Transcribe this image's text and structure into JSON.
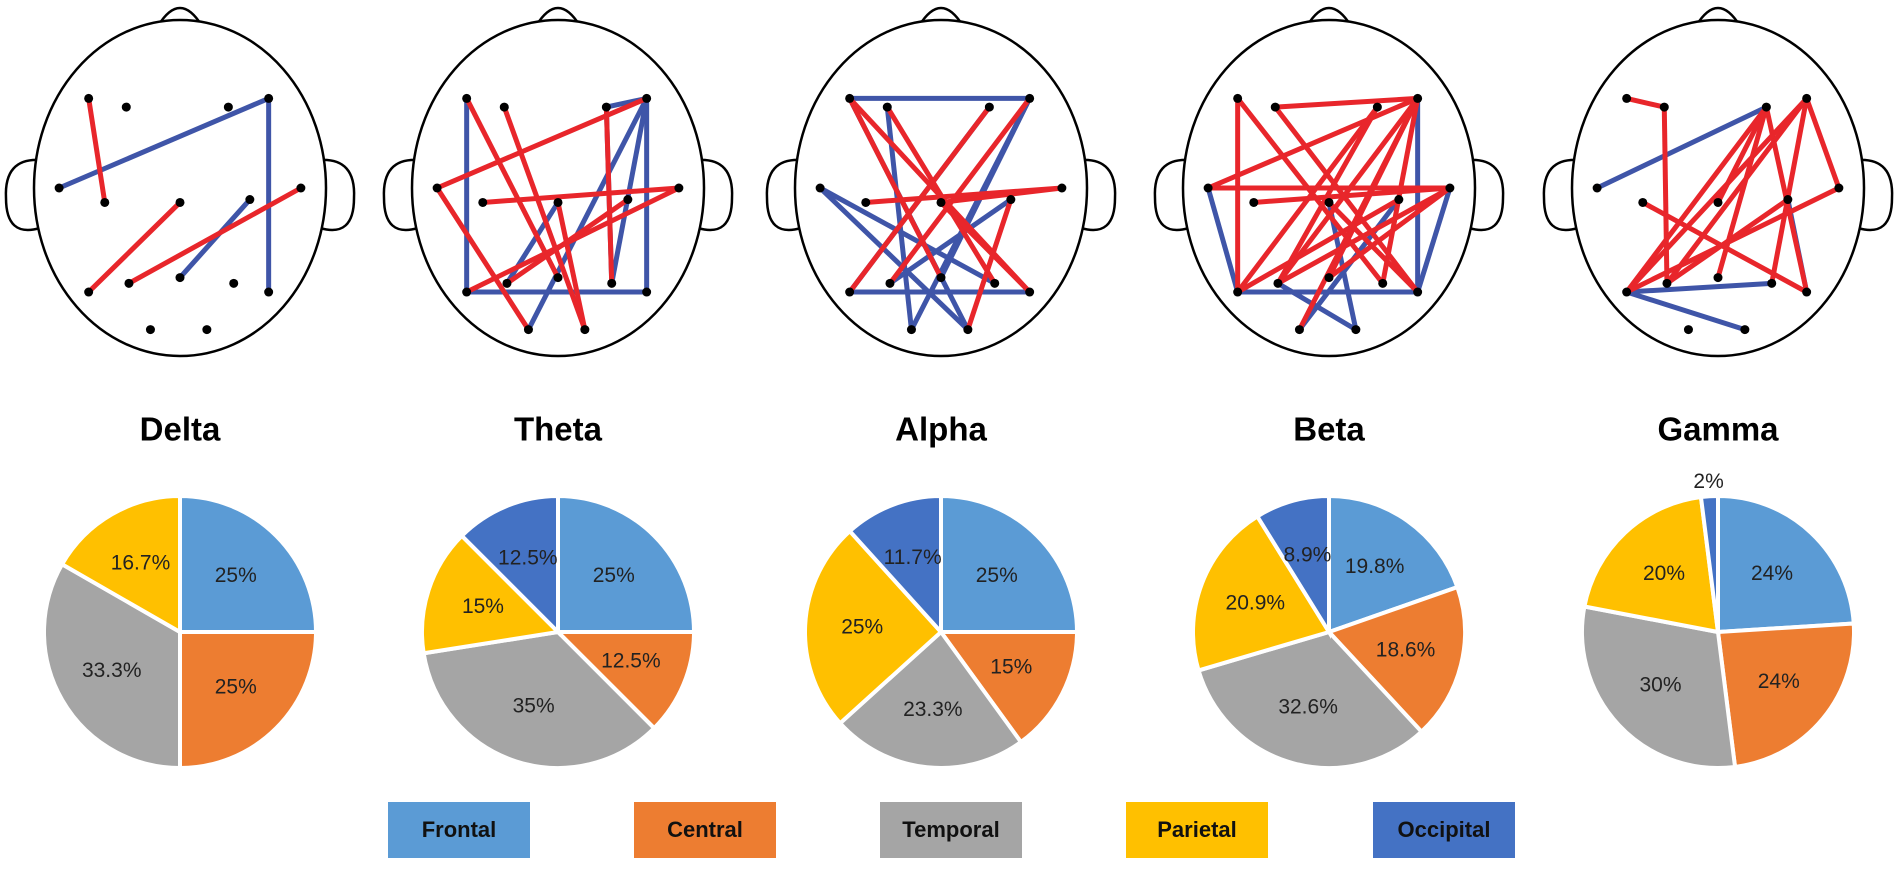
{
  "chart_data": [
    {
      "type": "pie",
      "title": "Delta",
      "categories": [
        "Frontal",
        "Central",
        "Temporal",
        "Parietal"
      ],
      "values": [
        25,
        25,
        33.3,
        16.7
      ],
      "value_labels": [
        "25%",
        "25%",
        "33.3%",
        "16.7%"
      ],
      "colors": [
        "#5b9bd5",
        "#ed7d31",
        "#a5a5a5",
        "#ffc000"
      ]
    },
    {
      "type": "pie",
      "title": "Theta",
      "categories": [
        "Frontal",
        "Central",
        "Temporal",
        "Parietal",
        "Occipital"
      ],
      "values": [
        25,
        12.5,
        35,
        15,
        12.5
      ],
      "value_labels": [
        "25%",
        "12.5%",
        "35%",
        "15%",
        "12.5%"
      ],
      "colors": [
        "#5b9bd5",
        "#ed7d31",
        "#a5a5a5",
        "#ffc000",
        "#4472c4"
      ]
    },
    {
      "type": "pie",
      "title": "Alpha",
      "categories": [
        "Frontal",
        "Central",
        "Temporal",
        "Parietal",
        "Occipital"
      ],
      "values": [
        25,
        15,
        23.3,
        25,
        11.7
      ],
      "value_labels": [
        "25%",
        "15%",
        "23.3%",
        "25%",
        "11.7%"
      ],
      "colors": [
        "#5b9bd5",
        "#ed7d31",
        "#a5a5a5",
        "#ffc000",
        "#4472c4"
      ]
    },
    {
      "type": "pie",
      "title": "Beta",
      "categories": [
        "Frontal",
        "Central",
        "Temporal",
        "Parietal",
        "Occipital"
      ],
      "values": [
        19.8,
        18.6,
        32.6,
        20.9,
        8.9
      ],
      "value_labels": [
        "19.8%",
        "18.6%",
        "32.6%",
        "20.9%",
        "8.9%"
      ],
      "colors": [
        "#5b9bd5",
        "#ed7d31",
        "#a5a5a5",
        "#ffc000",
        "#4472c4"
      ]
    },
    {
      "type": "pie",
      "title": "Gamma",
      "categories": [
        "Frontal",
        "Central",
        "Temporal",
        "Parietal",
        "Occipital"
      ],
      "values": [
        24,
        24,
        30,
        20,
        2
      ],
      "value_labels": [
        "24%",
        "24%",
        "30%",
        "20%",
        "2%"
      ],
      "colors": [
        "#5b9bd5",
        "#ed7d31",
        "#a5a5a5",
        "#ffc000",
        "#4472c4"
      ]
    }
  ]
}
